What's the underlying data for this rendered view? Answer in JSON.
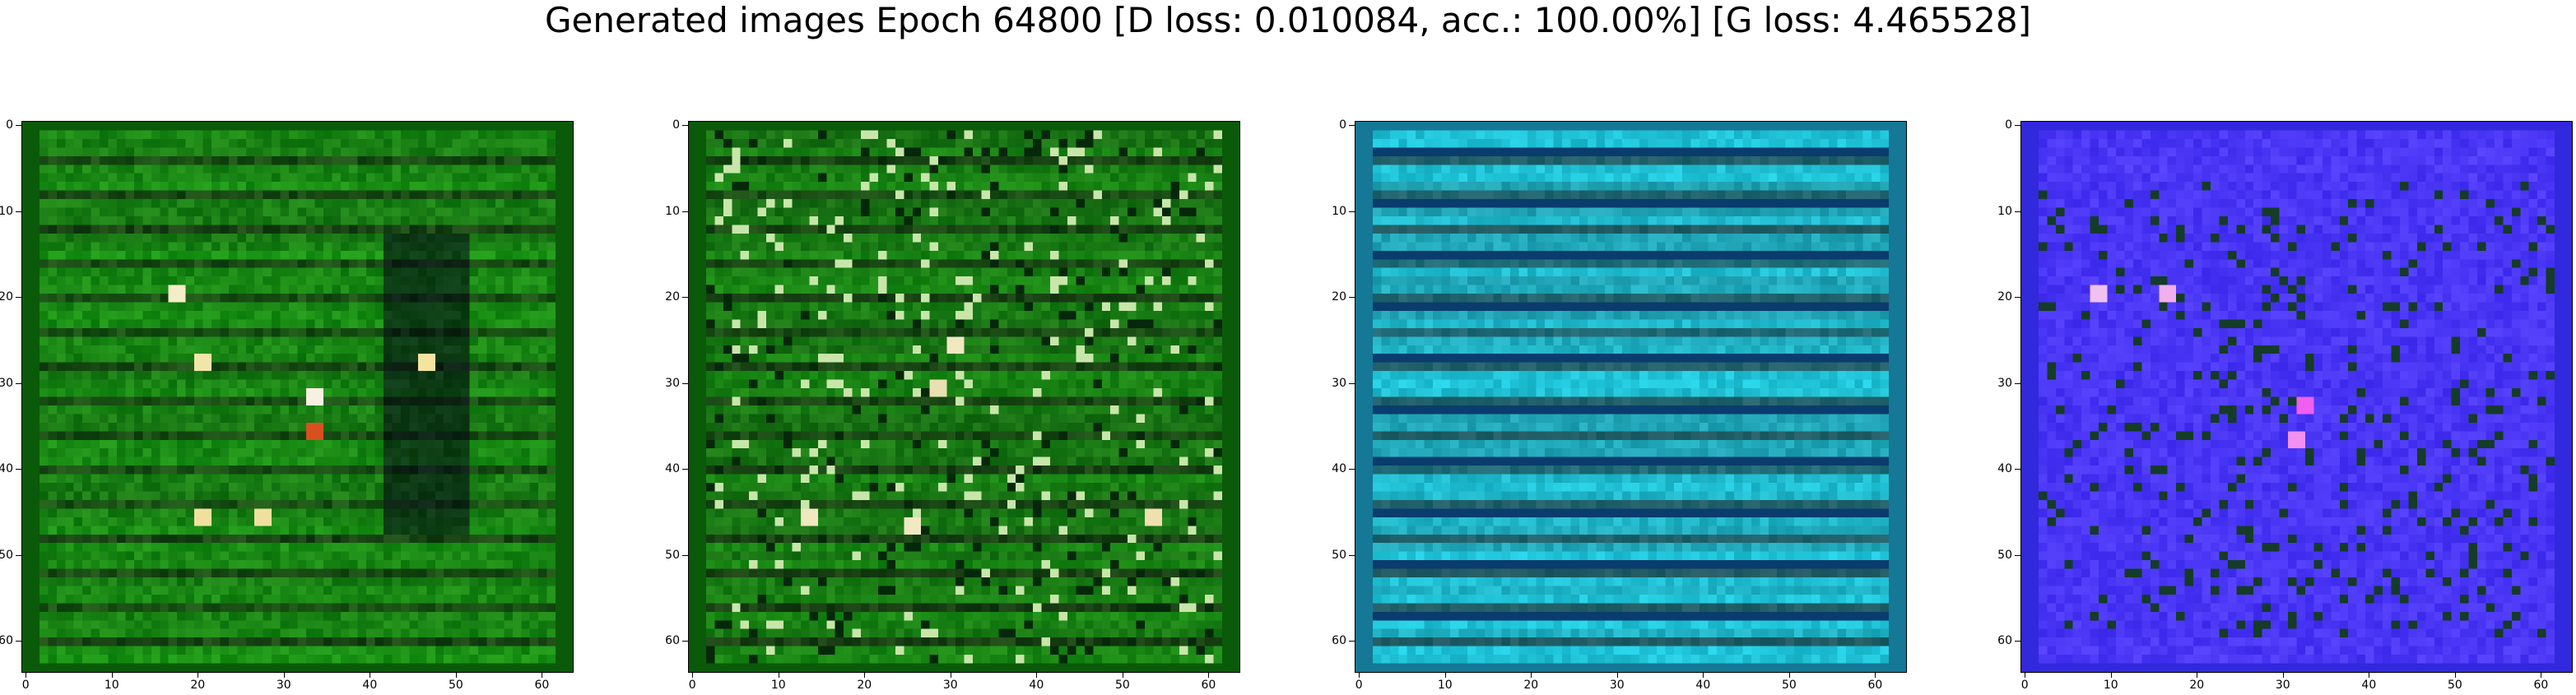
{
  "title": "Generated images Epoch 64800 [D loss: 0.010084, acc.: 100.00%] [G loss: 4.465528]",
  "axes": {
    "ticks": [
      0,
      10,
      20,
      30,
      40,
      50,
      60
    ],
    "tick_labels": [
      "0",
      "10",
      "20",
      "30",
      "40",
      "50",
      "60"
    ]
  },
  "panels": [
    {
      "id": "panel-1",
      "palette": "green",
      "base_color": "#0a8a14"
    },
    {
      "id": "panel-2",
      "palette": "green-mottled",
      "base_color": "#0e8a1c"
    },
    {
      "id": "panel-3",
      "palette": "cyan",
      "base_color": "#22b0c8"
    },
    {
      "id": "panel-4",
      "palette": "blue",
      "base_color": "#3c2cf0"
    }
  ]
}
